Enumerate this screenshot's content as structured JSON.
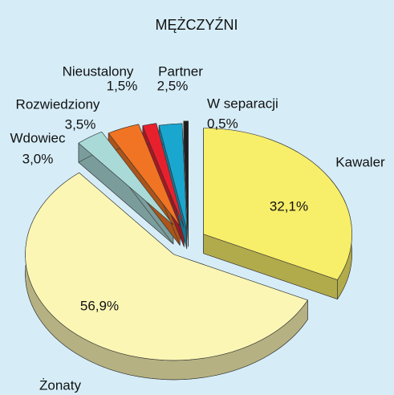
{
  "chart_data": {
    "type": "pie3d",
    "title": "MĘŻCZYŹNI",
    "categories": [
      "Kawaler",
      "Żonaty",
      "Wdowiec",
      "Rozwiedziony",
      "Nieustalony",
      "Partner",
      "W separacji"
    ],
    "values": [
      32.1,
      56.9,
      3.0,
      3.5,
      1.5,
      2.5,
      0.5
    ],
    "value_labels": [
      "32,1%",
      "56,9%",
      "3,0%",
      "3,5%",
      "1,5%",
      "2,5%",
      "0,5%"
    ],
    "colors": [
      "#f7ee6a",
      "#fbf6b4",
      "#a9dad8",
      "#f07423",
      "#e8202e",
      "#19a7cf",
      "#1e1e1e"
    ]
  }
}
